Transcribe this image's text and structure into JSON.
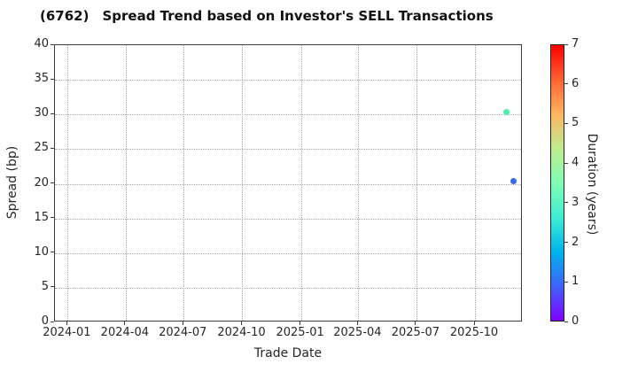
{
  "header": {
    "code": "(6762)",
    "title": "Spread Trend based on Investor's SELL Transactions"
  },
  "chart_data": {
    "type": "scatter",
    "title": "(6762)   Spread Trend based on Investor's SELL Transactions",
    "xlabel": "Trade Date",
    "ylabel": "Spread (bp)",
    "x_ticks": [
      "2024-01",
      "2024-04",
      "2024-07",
      "2024-10",
      "2025-01",
      "2025-04",
      "2025-07",
      "2025-10"
    ],
    "x_domain": [
      "2023-12-12",
      "2025-12-15"
    ],
    "y_ticks": [
      0,
      5,
      10,
      15,
      20,
      25,
      30,
      35,
      40
    ],
    "ylim": [
      0,
      40
    ],
    "grid": "dotted",
    "legend": "none",
    "points": [
      {
        "date": "2025-11-19",
        "spread_bp": 30.4,
        "duration_years": 3.0,
        "color": "#4FEDAB"
      },
      {
        "date": "2025-11-30",
        "spread_bp": 20.4,
        "duration_years": 1.0,
        "color": "#3A68EE"
      }
    ],
    "colorbar": {
      "label": "Duration (years)",
      "min": 0,
      "max": 7,
      "ticks": [
        0,
        1,
        2,
        3,
        4,
        5,
        6,
        7
      ],
      "colormap": "rainbow",
      "gradient_stops": [
        "#8000FF",
        "#4062FA",
        "#00B4EC",
        "#40ECD4",
        "#80FFB5",
        "#BFEC8E",
        "#FFB462",
        "#FF6232",
        "#FF0000"
      ]
    }
  }
}
